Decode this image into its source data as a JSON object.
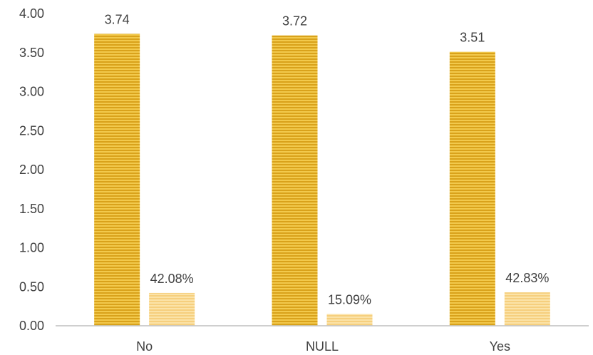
{
  "chart_data": {
    "type": "bar",
    "categories": [
      "No",
      "NULL",
      "Yes"
    ],
    "series": [
      {
        "values": [
          3.74,
          3.72,
          3.51
        ],
        "labels": [
          "3.74",
          "3.72",
          "3.51"
        ],
        "color": "#E8B83A"
      },
      {
        "values": [
          0.4208,
          0.1509,
          0.4283
        ],
        "labels": [
          "42.08%",
          "15.09%",
          "42.83%"
        ],
        "color": "#F9DA93"
      }
    ],
    "yticks": [
      "0.00",
      "0.50",
      "1.00",
      "1.50",
      "2.00",
      "2.50",
      "3.00",
      "3.50",
      "4.00"
    ],
    "ylim": [
      0,
      4
    ],
    "grid": false,
    "legend": "none",
    "title": "",
    "xlabel": "",
    "ylabel": ""
  }
}
